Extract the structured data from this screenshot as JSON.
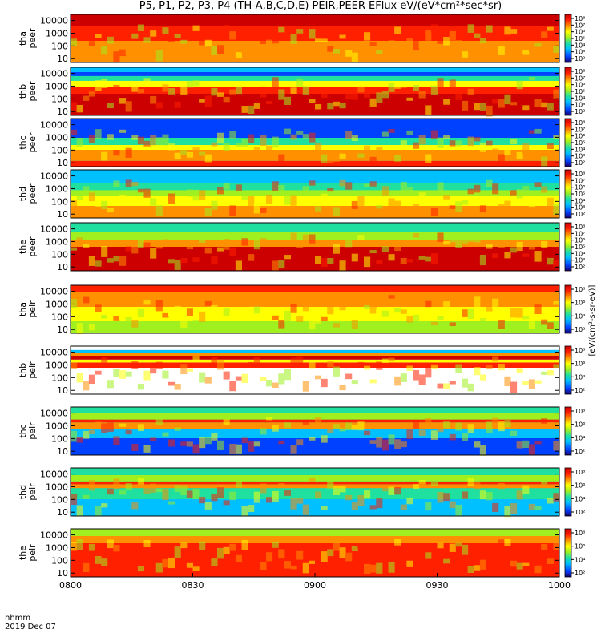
{
  "title": "P5, P1, P2, P3, P4 (TH-A,B,C,D,E) PEIR,PEER EFlux eV/(eV*cm²*sec*sr)",
  "footer": {
    "time_label": "hhmm",
    "date_label": "2019 Dec 07"
  },
  "colorbar_unit_label": "[eV/(cm²-s-sr-eV)]",
  "colorbar_ticks": [
    "10⁸",
    "10⁷",
    "10⁶",
    "10⁵",
    "10⁴",
    "10³",
    "10²"
  ],
  "colorbar_ticks_short": [
    "10⁸",
    "10⁶",
    "10⁴",
    "10²"
  ],
  "chart_data": {
    "type": "heatmap",
    "xlabel": "hhmm",
    "x_ticks": [
      "0800",
      "0830",
      "0900",
      "0930",
      "1000"
    ],
    "ylim": [
      5,
      30000
    ],
    "y_scale": "log",
    "y_ticks": [
      "10000",
      "1000",
      "100",
      "10"
    ],
    "colorscale": [
      "#1a0066",
      "#0040ff",
      "#00c0ff",
      "#20e0a0",
      "#a0f020",
      "#ffff00",
      "#ff9000",
      "#ff2000",
      "#cc0000"
    ],
    "panels": [
      {
        "probe": "tha",
        "species": "peer",
        "label1": "tha",
        "label2": "peer"
      },
      {
        "probe": "thb",
        "species": "peer",
        "label1": "thb",
        "label2": "peer"
      },
      {
        "probe": "thc",
        "species": "peer",
        "label1": "thc",
        "label2": "peer"
      },
      {
        "probe": "thd",
        "species": "peer",
        "label1": "thd",
        "label2": "peer"
      },
      {
        "probe": "the",
        "species": "peer",
        "label1": "the",
        "label2": "peer"
      },
      {
        "probe": "tha",
        "species": "peir",
        "label1": "tha",
        "label2": "peir"
      },
      {
        "probe": "thb",
        "species": "peir",
        "label1": "thb",
        "label2": "peir"
      },
      {
        "probe": "thc",
        "species": "peir",
        "label1": "thc",
        "label2": "peir"
      },
      {
        "probe": "thd",
        "species": "peir",
        "label1": "thd",
        "label2": "peir"
      },
      {
        "probe": "the",
        "species": "peir",
        "label1": "the",
        "label2": "peir"
      }
    ]
  }
}
